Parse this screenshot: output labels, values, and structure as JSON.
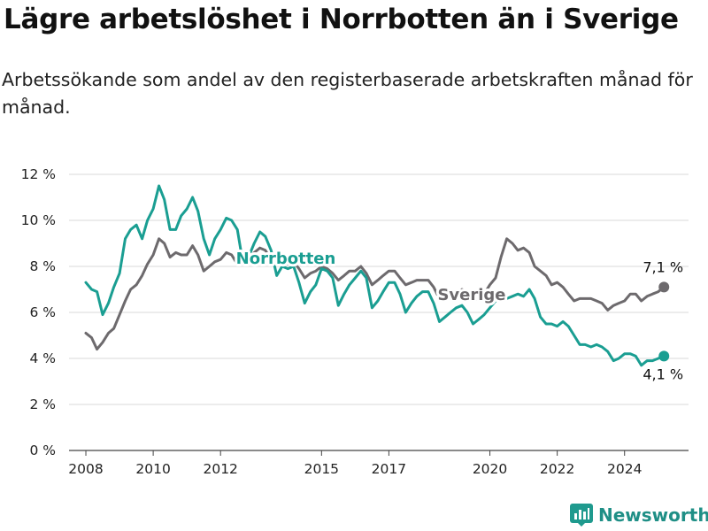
{
  "title": "Lägre arbetslöshet i Norrbotten än i Sverige",
  "subtitle": "Arbetssökande som andel av den registerbaserade arbetskraften månad för månad.",
  "brand": {
    "name": "Newsworthy",
    "icon": "bar-chart-logo-icon",
    "color": "#1f9a8e"
  },
  "chart_data": {
    "type": "line",
    "title": "Lägre arbetslöshet i Norrbotten än i Sverige",
    "subtitle": "Arbetssökande som andel av den registerbaserade arbetskraften månad för månad.",
    "xlabel": "",
    "ylabel": "",
    "xlim": [
      2007.5,
      2025.9
    ],
    "ylim": [
      0,
      12
    ],
    "grid": true,
    "y_ticks": [
      0,
      2,
      4,
      6,
      8,
      10,
      12
    ],
    "y_tick_labels": [
      "0 %",
      "2 %",
      "4 %",
      "6 %",
      "8 %",
      "10 %",
      "12 %"
    ],
    "x_ticks": [
      2008,
      2010,
      2012,
      2015,
      2017,
      2020,
      2022,
      2024
    ],
    "x_tick_labels": [
      "2008",
      "2010",
      "2012",
      "2015",
      "2017",
      "2020",
      "2022",
      "2024"
    ],
    "series": [
      {
        "name": "Norrbotten",
        "color": "#1a9e92",
        "end_label": "4,1 %",
        "points": [
          [
            2008.0,
            7.3
          ],
          [
            2008.17,
            7.0
          ],
          [
            2008.33,
            6.9
          ],
          [
            2008.5,
            5.9
          ],
          [
            2008.67,
            6.4
          ],
          [
            2008.83,
            7.1
          ],
          [
            2009.0,
            7.7
          ],
          [
            2009.17,
            9.2
          ],
          [
            2009.33,
            9.6
          ],
          [
            2009.5,
            9.8
          ],
          [
            2009.67,
            9.2
          ],
          [
            2009.83,
            10.0
          ],
          [
            2010.0,
            10.5
          ],
          [
            2010.17,
            11.5
          ],
          [
            2010.33,
            10.9
          ],
          [
            2010.5,
            9.6
          ],
          [
            2010.67,
            9.6
          ],
          [
            2010.83,
            10.2
          ],
          [
            2011.0,
            10.5
          ],
          [
            2011.17,
            11.0
          ],
          [
            2011.33,
            10.4
          ],
          [
            2011.5,
            9.2
          ],
          [
            2011.67,
            8.5
          ],
          [
            2011.83,
            9.2
          ],
          [
            2012.0,
            9.6
          ],
          [
            2012.17,
            10.1
          ],
          [
            2012.33,
            10.0
          ],
          [
            2012.5,
            9.6
          ],
          [
            2012.67,
            8.1
          ],
          [
            2012.83,
            8.4
          ],
          [
            2013.0,
            9.0
          ],
          [
            2013.17,
            9.5
          ],
          [
            2013.33,
            9.3
          ],
          [
            2013.5,
            8.7
          ],
          [
            2013.67,
            7.6
          ],
          [
            2013.83,
            8.0
          ],
          [
            2014.0,
            7.9
          ],
          [
            2014.17,
            8.0
          ],
          [
            2014.33,
            7.3
          ],
          [
            2014.5,
            6.4
          ],
          [
            2014.67,
            6.9
          ],
          [
            2014.83,
            7.2
          ],
          [
            2015.0,
            7.9
          ],
          [
            2015.17,
            7.8
          ],
          [
            2015.33,
            7.5
          ],
          [
            2015.5,
            6.3
          ],
          [
            2015.67,
            6.8
          ],
          [
            2015.83,
            7.2
          ],
          [
            2016.0,
            7.5
          ],
          [
            2016.17,
            7.8
          ],
          [
            2016.33,
            7.5
          ],
          [
            2016.5,
            6.2
          ],
          [
            2016.67,
            6.5
          ],
          [
            2016.83,
            6.9
          ],
          [
            2017.0,
            7.3
          ],
          [
            2017.17,
            7.3
          ],
          [
            2017.33,
            6.8
          ],
          [
            2017.5,
            6.0
          ],
          [
            2017.67,
            6.4
          ],
          [
            2017.83,
            6.7
          ],
          [
            2018.0,
            6.9
          ],
          [
            2018.17,
            6.9
          ],
          [
            2018.33,
            6.4
          ],
          [
            2018.5,
            5.6
          ],
          [
            2018.67,
            5.8
          ],
          [
            2018.83,
            6.0
          ],
          [
            2019.0,
            6.2
          ],
          [
            2019.17,
            6.3
          ],
          [
            2019.33,
            6.0
          ],
          [
            2019.5,
            5.5
          ],
          [
            2019.67,
            5.7
          ],
          [
            2019.83,
            5.9
          ],
          [
            2020.0,
            6.2
          ],
          [
            2020.17,
            6.5
          ],
          [
            2020.33,
            6.7
          ],
          [
            2020.5,
            6.6
          ],
          [
            2020.67,
            6.7
          ],
          [
            2020.83,
            6.8
          ],
          [
            2021.0,
            6.7
          ],
          [
            2021.17,
            7.0
          ],
          [
            2021.33,
            6.6
          ],
          [
            2021.5,
            5.8
          ],
          [
            2021.67,
            5.5
          ],
          [
            2021.83,
            5.5
          ],
          [
            2022.0,
            5.4
          ],
          [
            2022.17,
            5.6
          ],
          [
            2022.33,
            5.4
          ],
          [
            2022.5,
            5.0
          ],
          [
            2022.67,
            4.6
          ],
          [
            2022.83,
            4.6
          ],
          [
            2023.0,
            4.5
          ],
          [
            2023.17,
            4.6
          ],
          [
            2023.33,
            4.5
          ],
          [
            2023.5,
            4.3
          ],
          [
            2023.67,
            3.9
          ],
          [
            2023.83,
            4.0
          ],
          [
            2024.0,
            4.2
          ],
          [
            2024.17,
            4.2
          ],
          [
            2024.33,
            4.1
          ],
          [
            2024.5,
            3.7
          ],
          [
            2024.67,
            3.9
          ],
          [
            2024.83,
            3.9
          ],
          [
            2025.0,
            4.0
          ],
          [
            2025.17,
            4.1
          ]
        ]
      },
      {
        "name": "Sverige",
        "color": "#6d6a6d",
        "end_label": "7,1 %",
        "points": [
          [
            2008.0,
            5.1
          ],
          [
            2008.17,
            4.9
          ],
          [
            2008.33,
            4.4
          ],
          [
            2008.5,
            4.7
          ],
          [
            2008.67,
            5.1
          ],
          [
            2008.83,
            5.3
          ],
          [
            2009.0,
            5.9
          ],
          [
            2009.17,
            6.5
          ],
          [
            2009.33,
            7.0
          ],
          [
            2009.5,
            7.2
          ],
          [
            2009.67,
            7.6
          ],
          [
            2009.83,
            8.1
          ],
          [
            2010.0,
            8.5
          ],
          [
            2010.17,
            9.2
          ],
          [
            2010.33,
            9.0
          ],
          [
            2010.5,
            8.4
          ],
          [
            2010.67,
            8.6
          ],
          [
            2010.83,
            8.5
          ],
          [
            2011.0,
            8.5
          ],
          [
            2011.17,
            8.9
          ],
          [
            2011.33,
            8.5
          ],
          [
            2011.5,
            7.8
          ],
          [
            2011.67,
            8.0
          ],
          [
            2011.83,
            8.2
          ],
          [
            2012.0,
            8.3
          ],
          [
            2012.17,
            8.6
          ],
          [
            2012.33,
            8.5
          ],
          [
            2012.5,
            8.1
          ],
          [
            2012.67,
            8.2
          ],
          [
            2012.83,
            8.4
          ],
          [
            2013.0,
            8.6
          ],
          [
            2013.17,
            8.8
          ],
          [
            2013.33,
            8.7
          ],
          [
            2013.5,
            8.3
          ],
          [
            2013.67,
            8.1
          ],
          [
            2013.83,
            8.2
          ],
          [
            2014.0,
            8.1
          ],
          [
            2014.17,
            8.2
          ],
          [
            2014.33,
            7.9
          ],
          [
            2014.5,
            7.5
          ],
          [
            2014.67,
            7.7
          ],
          [
            2014.83,
            7.8
          ],
          [
            2015.0,
            8.0
          ],
          [
            2015.17,
            7.9
          ],
          [
            2015.33,
            7.7
          ],
          [
            2015.5,
            7.4
          ],
          [
            2015.67,
            7.6
          ],
          [
            2015.83,
            7.8
          ],
          [
            2016.0,
            7.8
          ],
          [
            2016.17,
            8.0
          ],
          [
            2016.33,
            7.7
          ],
          [
            2016.5,
            7.2
          ],
          [
            2016.67,
            7.4
          ],
          [
            2016.83,
            7.6
          ],
          [
            2017.0,
            7.8
          ],
          [
            2017.17,
            7.8
          ],
          [
            2017.33,
            7.5
          ],
          [
            2017.5,
            7.2
          ],
          [
            2017.67,
            7.3
          ],
          [
            2017.83,
            7.4
          ],
          [
            2018.0,
            7.4
          ],
          [
            2018.17,
            7.4
          ],
          [
            2018.33,
            7.1
          ],
          [
            2018.5,
            6.6
          ],
          [
            2018.67,
            6.7
          ],
          [
            2018.83,
            6.8
          ],
          [
            2019.0,
            6.8
          ],
          [
            2019.17,
            7.0
          ],
          [
            2019.33,
            6.9
          ],
          [
            2019.5,
            6.5
          ],
          [
            2019.67,
            6.6
          ],
          [
            2019.83,
            6.8
          ],
          [
            2020.0,
            7.2
          ],
          [
            2020.17,
            7.5
          ],
          [
            2020.33,
            8.4
          ],
          [
            2020.5,
            9.2
          ],
          [
            2020.67,
            9.0
          ],
          [
            2020.83,
            8.7
          ],
          [
            2021.0,
            8.8
          ],
          [
            2021.17,
            8.6
          ],
          [
            2021.33,
            8.0
          ],
          [
            2021.5,
            7.8
          ],
          [
            2021.67,
            7.6
          ],
          [
            2021.83,
            7.2
          ],
          [
            2022.0,
            7.3
          ],
          [
            2022.17,
            7.1
          ],
          [
            2022.33,
            6.8
          ],
          [
            2022.5,
            6.5
          ],
          [
            2022.67,
            6.6
          ],
          [
            2022.83,
            6.6
          ],
          [
            2023.0,
            6.6
          ],
          [
            2023.17,
            6.5
          ],
          [
            2023.33,
            6.4
          ],
          [
            2023.5,
            6.1
          ],
          [
            2023.67,
            6.3
          ],
          [
            2023.83,
            6.4
          ],
          [
            2024.0,
            6.5
          ],
          [
            2024.17,
            6.8
          ],
          [
            2024.33,
            6.8
          ],
          [
            2024.5,
            6.5
          ],
          [
            2024.67,
            6.7
          ],
          [
            2024.83,
            6.8
          ],
          [
            2025.0,
            6.9
          ],
          [
            2025.17,
            7.1
          ]
        ]
      }
    ]
  }
}
